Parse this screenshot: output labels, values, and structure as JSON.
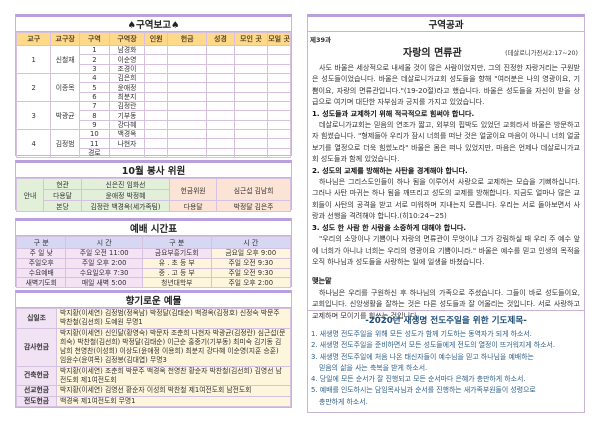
{
  "report": {
    "title": "♠구역보고♠",
    "headers": [
      "교구",
      "교구장",
      "구역",
      "구역장",
      "인원",
      "헌금",
      "성경",
      "모인 곳",
      "모일 곳"
    ],
    "groups": [
      {
        "no": "1",
        "leader": "신철재",
        "zones": [
          [
            "1",
            "남경화"
          ],
          [
            "2",
            "이순영"
          ],
          [
            "3",
            "조경이"
          ]
        ]
      },
      {
        "no": "2",
        "leader": "이종목",
        "zones": [
          [
            "4",
            "김은희"
          ],
          [
            "5",
            "윤애정"
          ],
          [
            "6",
            "최분지"
          ]
        ]
      },
      {
        "no": "3",
        "leader": "박광균",
        "zones": [
          [
            "7",
            "김정란"
          ],
          [
            "8",
            "기부동"
          ],
          [
            "9",
            "강다혜"
          ]
        ]
      },
      {
        "no": "4",
        "leader": "김정범",
        "zones": [
          [
            "10",
            "백경옥"
          ],
          [
            "11",
            "나현자"
          ],
          [
            "경로",
            ""
          ]
        ]
      }
    ]
  },
  "service": {
    "title": "10월 봉사 위원",
    "guide": "안내",
    "rows": [
      [
        "현관",
        "신은진 임화선"
      ],
      [
        "다용달",
        "윤애정 박정혜"
      ],
      [
        "본당",
        "김정란 백경옥(세가족팀)"
      ]
    ],
    "offering_label": "헌금위원",
    "offering_names": "심근섭 김남희",
    "r3_label": "다용달",
    "r3_names": "박정달 김은주"
  },
  "worship": {
    "title": "예배 시간표",
    "headers": [
      "구 분",
      "시 간",
      "구 분",
      "시 간"
    ],
    "rows": [
      [
        "주 일 낮",
        "주일 오전 11:00",
        "금요부흥기도회",
        "금요일 오후 9:00"
      ],
      [
        "주일오후",
        "주일 오후 2:00",
        "유 . 초 등 부",
        "주일 오전 9:30"
      ],
      [
        "수요예배",
        "수요일오후 7:30",
        "중 . 고 등 부",
        "주일 오전 9:30"
      ],
      [
        "새벽기도회",
        "매일 새벽 5:00",
        "청년대학부",
        "주일 오후 2:00"
      ]
    ]
  },
  "gifts": {
    "title": "향기로운 예물",
    "rows": [
      {
        "label": "십일조",
        "text": "박지황(이세연) 김정범(정옥남) 박정달(김태순) 백경옥(김정호) 신정숙 박문주 박찬철(김선희) 도예원 무명1"
      },
      {
        "label": "감사헌금",
        "text": "박지황(이세연) 신인달(황영숙) 박문자 조춘희 나현자 박광균(김정란) 심근섭(문희숙) 박찬철(김선희) 박정달(김태순) 이근순 홍중기(기부동) 최미숙 김기동 김남희 천영찬(이성희) 이상도(윤애정 이용희) 최분지 강다혜 이순영(지훈 승훈) 임윤수(윤여목) 김정봉(김대엽) 무명3"
      },
      {
        "label": "건축헌금",
        "text": "박지황(이세연) 조춘희 박문주 백경옥 천영찬 황순자 박찬철(김선희) 김영선 남전도회 제1여전도회"
      },
      {
        "label": "선교헌금",
        "text": "박지황(이세연) 김영선 황순자 이성희 박찬철 제1여전도회 남전도회"
      },
      {
        "label": "전도헌금",
        "text": "백경옥 제1여전도회 무명1"
      }
    ]
  },
  "lesson": {
    "header": "구역공과",
    "no": "제39과",
    "title": "자랑의 면류관",
    "ref": "(데살로니가전서2:17~20)",
    "paras": [
      {
        "t": "사도 바울은 세상적으로 내세울 것이 많은 사람이었지만, 그의 진정한 자랑거리는 구원받은 성도들이었습니다. 바울은 데살로니가교회 성도들을 향해 \"여러분은 나의 영광이요, 기쁨이요, 자랑의 면류관입니다.\"(19-20절)라고 했습니다. 바울은 성도들을 자신이 받을 상급으로 여기며 대단한 자부심과 긍지를 가지고 있었습니다.",
        "h": false
      },
      {
        "t": "1. 성도들과 교제하기 위해 적극적으로 힘써야 합니다.",
        "h": true
      },
      {
        "t": "데살로니가교회는 믿음의 연조가 짧고, 외부의 핍박도 있었던 교회라서 바울은 방문하고자 힘썼습니다. \"형제들아 우리가 잠시 너희를 떠난 것은 얼굴이요 마음이 아니니 너희 얼굴 보기를 열정으로 더욱 힘썼노라\" 바울은 몸은 떠나 있었지만, 마음은 언제나 데살로니가교회 성도들과 함께 있었습니다.",
        "h": false
      },
      {
        "t": "2. 성도의 교제를 방해하는 사탄을 경계해야 합니다.",
        "h": true
      },
      {
        "t": "하나님은 그리스도인들이 하나 됨을 이루어서 사랑으로 교제하는 모습을 기뻐하십니다. 그러나 사탄 마귀는 하나 됨을 깨뜨리고 성도의 교제를 방해합니다. 지금도 얼마나 많은 교회들이 사탄의 공격을 받고 서로 미워하며 지내는지 모릅니다. 우리는 서로 돌아보면서 사랑과 선행을 격려해야 합니다.(히10:24~25)",
        "h": false
      },
      {
        "t": "3. 성도 한 사람 한 사람을 소중하게 대해야 합니다.",
        "h": true
      },
      {
        "t": "\"우리의 소망이나 기쁨이나 자랑의 면류관이 무엇이냐 그가 강림하실 때 우리 주 예수 앞에 너희가 아니냐 너희는 우리의 영광이요 기쁨이니라.\" 바울은 예수를 믿고 인생의 목적을 오직 하나님과 성도들을 사랑하는 일에 일생을 바쳤습니다.",
        "h": false
      }
    ],
    "closing_title": "맺는말",
    "closing": "하나님은 우리를 구원하신 후 하나님의 가족으로 주셨습니다. 그들이 바로 성도들이요, 교회입니다. 신앙생활을 잘하는 것은 다른 성도들과 잘 어울리는 것입니다. 서로 사랑하고 교제하며 모이기를 힘쓰는 것입니다."
  },
  "prayer": {
    "title": "-2020년 새생명 전도주일을 위한 기도제목-",
    "items": [
      [
        "1. 새생명 전도주일을 위해 모든 성도가 함께 기도하는 동역자가 되게 하소서.",
        ""
      ],
      [
        "2. 새생명 전도주일을 준비하면서 모든 성도들에게 전도의 열정이 뜨거워지게 하소서.",
        ""
      ],
      [
        "3. 새생명 전도주일에 처음 나온 태신자들이 예수님을 믿고 하나님을 예배하는",
        "믿음의 삶을 사는 축복을 받게 하소서."
      ],
      [
        "4. 당일에 모든 순서가 잘 진행되고 모든 순서마다 은혜가 충만하게 하소서.",
        ""
      ],
      [
        "5. 예배를 인도하시는 담임목사님과 순서를 진행하는 새가족부원들이 성령으로",
        "충만하게 하소서."
      ]
    ]
  }
}
